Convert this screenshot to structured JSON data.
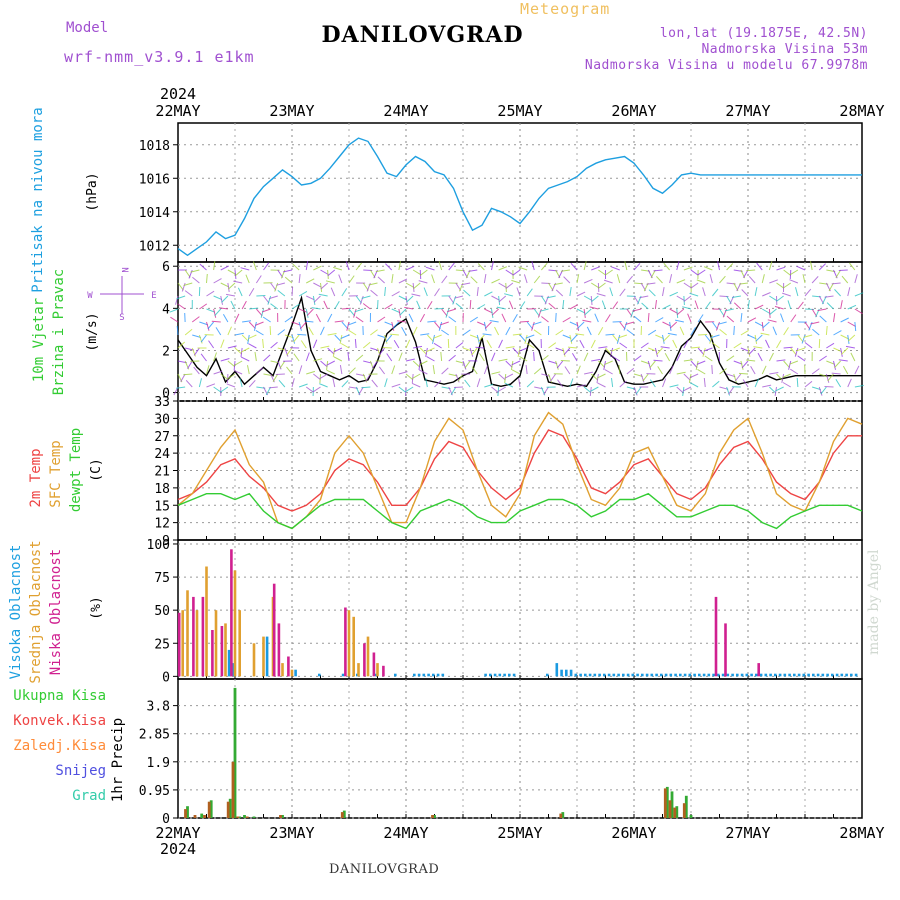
{
  "header": {
    "title": "DANILOVGRAD",
    "subtitle": "Meteogram",
    "model_label": "Model",
    "model_value": "wrf-nmm_v3.9.1  e1km",
    "coords": "lon,lat (19.1875E, 42.5N)",
    "elevation": "Nadmorska Visina 53m",
    "model_elevation": "Nadmorska Visina u modelu 67.9978m",
    "credit": "made by Angel",
    "footer_name": "DANILOVGRAD"
  },
  "time_axis": {
    "year": "2024",
    "days": [
      "22MAY",
      "23MAY",
      "24MAY",
      "25MAY",
      "26MAY",
      "27MAY",
      "28MAY"
    ],
    "hours": 144
  },
  "legend": {
    "wind_compass": "N  W <-|-> E  S",
    "compass_n": "N",
    "compass_w": "W",
    "compass_e": "E",
    "compass_s": "S"
  },
  "chart_data": [
    {
      "type": "line",
      "panel": "pressure",
      "ylabel_main": "Pritisak na nivou mora",
      "ylabel_unit": "(hPa)",
      "ylim": [
        1011,
        1019.3
      ],
      "yticks": [
        1012,
        1014,
        1016,
        1018
      ],
      "grid": true,
      "series": [
        {
          "color": "#1e9fe0",
          "x": [
            0,
            2,
            4,
            6,
            8,
            10,
            12,
            14,
            16,
            18,
            20,
            22,
            24,
            26,
            28,
            30,
            32,
            34,
            36,
            38,
            40,
            42,
            44,
            46,
            48,
            50,
            52,
            54,
            56,
            58,
            60,
            62,
            64,
            66,
            68,
            70,
            72,
            74,
            76,
            78,
            80,
            82,
            84,
            86,
            88,
            90,
            92,
            94,
            96,
            98,
            100,
            102,
            104,
            106,
            108,
            110,
            112,
            114,
            116,
            118,
            120,
            122,
            124,
            126,
            128,
            130,
            132,
            134,
            136,
            138,
            140,
            142,
            144
          ],
          "y": [
            1011.8,
            1011.4,
            1011.8,
            1012.2,
            1012.8,
            1012.4,
            1012.6,
            1013.6,
            1014.8,
            1015.5,
            1016.0,
            1016.5,
            1016.1,
            1015.6,
            1015.7,
            1016.0,
            1016.6,
            1017.3,
            1018.0,
            1018.4,
            1018.2,
            1017.3,
            1016.3,
            1016.1,
            1016.8,
            1017.3,
            1017.0,
            1016.4,
            1016.2,
            1015.4,
            1014.0,
            1012.9,
            1013.2,
            1014.2,
            1014.0,
            1013.7,
            1013.3,
            1014.0,
            1014.8,
            1015.4,
            1015.6,
            1015.8,
            1016.1,
            1016.6,
            1016.9,
            1017.1,
            1017.2,
            1017.3,
            1016.9,
            1016.2,
            1015.4,
            1015.1,
            1015.6,
            1016.2,
            1016.3,
            1016.2,
            1016.2,
            1016.2,
            1016.2,
            1016.2,
            1016.2,
            1016.2,
            1016.2,
            1016.2,
            1016.2,
            1016.2,
            1016.2,
            1016.2,
            1016.2,
            1016.2,
            1016.2,
            1016.2,
            1016.2
          ]
        }
      ]
    },
    {
      "type": "line",
      "panel": "wind",
      "ylabel_main": "10m Vjetar",
      "ylabel_sub": "Brzina i Pravac",
      "ylabel_unit": "(m/s)",
      "ylim": [
        -0.4,
        6.2
      ],
      "yticks": [
        0,
        2,
        4,
        6
      ],
      "grid": true,
      "series": [
        {
          "name": "wind speed",
          "color": "#000000",
          "x": [
            0,
            4,
            6,
            8,
            10,
            12,
            14,
            16,
            18,
            20,
            22,
            24,
            26,
            28,
            30,
            32,
            34,
            36,
            38,
            40,
            42,
            44,
            46,
            48,
            50,
            52,
            54,
            56,
            58,
            60,
            62,
            64,
            66,
            68,
            70,
            72,
            74,
            76,
            78,
            80,
            82,
            84,
            86,
            88,
            90,
            92,
            94,
            96,
            98,
            100,
            102,
            104,
            106,
            108,
            110,
            112,
            114,
            116,
            118,
            120,
            122,
            124,
            126,
            128,
            130,
            132,
            134,
            136,
            138,
            140,
            142,
            144
          ],
          "y": [
            2.5,
            1.2,
            0.8,
            1.6,
            0.5,
            1.0,
            0.4,
            0.8,
            1.2,
            0.8,
            2.0,
            3.2,
            4.5,
            2.0,
            1.0,
            0.8,
            0.6,
            0.8,
            0.5,
            0.6,
            1.5,
            2.8,
            3.2,
            3.5,
            2.4,
            0.6,
            0.5,
            0.4,
            0.5,
            0.8,
            1.0,
            2.6,
            0.4,
            0.3,
            0.4,
            0.8,
            2.5,
            2.0,
            0.5,
            0.4,
            0.3,
            0.4,
            0.3,
            1.0,
            2.0,
            1.6,
            0.5,
            0.4,
            0.4,
            0.5,
            0.6,
            1.2,
            2.2,
            2.6,
            3.4,
            2.8,
            1.4,
            0.6,
            0.4,
            0.5,
            0.6,
            0.8,
            0.6,
            0.7,
            0.8,
            0.8,
            0.8,
            0.8,
            0.8,
            0.8,
            0.8,
            0.8
          ]
        }
      ]
    },
    {
      "type": "line",
      "panel": "temperature",
      "ylabel_t2": "2m Temp",
      "ylabel_sfc": "SFC Temp",
      "ylabel_dew": "dewpt Temp",
      "ylabel_unit": "(C)",
      "ylim": [
        9,
        33
      ],
      "yticks": [
        9,
        12,
        15,
        18,
        21,
        24,
        27,
        30,
        33
      ],
      "grid": true,
      "series": [
        {
          "name": "2m Temp",
          "color": "#ee4444",
          "x": [
            0,
            3,
            6,
            9,
            12,
            15,
            18,
            21,
            24,
            27,
            30,
            33,
            36,
            39,
            42,
            45,
            48,
            51,
            54,
            57,
            60,
            63,
            66,
            69,
            72,
            75,
            78,
            81,
            84,
            87,
            90,
            93,
            96,
            99,
            102,
            105,
            108,
            111,
            114,
            117,
            120,
            123,
            126,
            129,
            132,
            135,
            138,
            141,
            144
          ],
          "y": [
            16,
            17,
            19,
            22,
            23,
            20,
            18,
            15,
            14,
            15,
            17,
            21,
            23,
            22,
            19,
            15,
            15,
            18,
            23,
            26,
            25,
            21,
            18,
            16,
            18,
            24,
            28,
            27,
            23,
            18,
            17,
            19,
            22,
            23,
            20,
            17,
            16,
            18,
            22,
            25,
            26,
            23,
            19,
            17,
            16,
            19,
            24,
            27,
            27
          ]
        },
        {
          "name": "SFC Temp",
          "color": "#e0a030",
          "x": [
            0,
            3,
            6,
            9,
            12,
            15,
            18,
            21,
            24,
            27,
            30,
            33,
            36,
            39,
            42,
            45,
            48,
            51,
            54,
            57,
            60,
            63,
            66,
            69,
            72,
            75,
            78,
            81,
            84,
            87,
            90,
            93,
            96,
            99,
            102,
            105,
            108,
            111,
            114,
            117,
            120,
            123,
            126,
            129,
            132,
            135,
            138,
            141,
            144
          ],
          "y": [
            15,
            17,
            21,
            25,
            28,
            22,
            19,
            12,
            11,
            13,
            16,
            24,
            27,
            24,
            18,
            12,
            12,
            18,
            26,
            30,
            28,
            21,
            15,
            13,
            17,
            27,
            31,
            29,
            22,
            16,
            15,
            18,
            24,
            25,
            20,
            15,
            14,
            17,
            24,
            28,
            30,
            24,
            17,
            15,
            14,
            19,
            26,
            30,
            29
          ]
        },
        {
          "name": "dewpt Temp",
          "color": "#33cc33",
          "x": [
            0,
            3,
            6,
            9,
            12,
            15,
            18,
            21,
            24,
            27,
            30,
            33,
            36,
            39,
            42,
            45,
            48,
            51,
            54,
            57,
            60,
            63,
            66,
            69,
            72,
            75,
            78,
            81,
            84,
            87,
            90,
            93,
            96,
            99,
            102,
            105,
            108,
            111,
            114,
            117,
            120,
            123,
            126,
            129,
            132,
            135,
            138,
            141,
            144
          ],
          "y": [
            15,
            16,
            17,
            17,
            16,
            17,
            14,
            12,
            11,
            13,
            15,
            16,
            16,
            16,
            14,
            12,
            11,
            14,
            15,
            16,
            15,
            13,
            12,
            12,
            14,
            15,
            16,
            16,
            15,
            13,
            14,
            16,
            16,
            17,
            15,
            13,
            13,
            14,
            15,
            15,
            14,
            12,
            11,
            13,
            14,
            15,
            15,
            15,
            14
          ]
        }
      ]
    },
    {
      "type": "bar",
      "panel": "clouds",
      "ylabel_high": "Visoka Oblacnost",
      "ylabel_mid": "Srednja Oblacnost",
      "ylabel_low": "Niska Oblacnost",
      "ylabel_unit": "(%)",
      "ylim": [
        -2,
        103
      ],
      "yticks": [
        0,
        25,
        50,
        75,
        100
      ],
      "grid": true,
      "series": [
        {
          "name": "Visoka Oblacnost",
          "color": "#1a9ae0",
          "hours": [
            11,
            12,
            19,
            25,
            30,
            35,
            38,
            42,
            46,
            50,
            51,
            52,
            53,
            54,
            55,
            56,
            65,
            66,
            67,
            68,
            69,
            70,
            71,
            78,
            80,
            81,
            82,
            83,
            84,
            85,
            86,
            87,
            88,
            89,
            90,
            91,
            92,
            93,
            94,
            95,
            96,
            97,
            98,
            99,
            100,
            101,
            102,
            103,
            104,
            105,
            106,
            107,
            108,
            109,
            110,
            111,
            112,
            113,
            114,
            115,
            116,
            117,
            118,
            119,
            120,
            121,
            122,
            123,
            124,
            125,
            126,
            127,
            128,
            129,
            130,
            131,
            132,
            133,
            134,
            135,
            136,
            137,
            138,
            139,
            140,
            141,
            142,
            143
          ],
          "values": [
            20,
            10,
            30,
            5,
            2,
            2,
            2,
            2,
            2,
            2,
            2,
            2,
            2,
            2,
            2,
            2,
            2,
            2,
            2,
            2,
            2,
            2,
            2,
            2,
            10,
            5,
            5,
            5,
            2,
            2,
            2,
            2,
            2,
            2,
            2,
            2,
            2,
            2,
            2,
            2,
            2,
            2,
            2,
            2,
            2,
            2,
            2,
            2,
            2,
            2,
            2,
            2,
            2,
            2,
            2,
            2,
            2,
            2,
            2,
            2,
            2,
            2,
            2,
            2,
            2,
            2,
            2,
            2,
            2,
            2,
            2,
            2,
            2,
            2,
            2,
            2,
            2,
            2,
            2,
            2,
            2,
            2,
            2,
            2,
            2,
            2,
            2,
            2
          ]
        },
        {
          "name": "Srednja Oblacnost",
          "color": "#e0a030",
          "hours": [
            1,
            2,
            4,
            6,
            8,
            10,
            12,
            13,
            16,
            18,
            20,
            22,
            24,
            36,
            37,
            38,
            40,
            42
          ],
          "values": [
            50,
            65,
            50,
            83,
            50,
            40,
            80,
            50,
            25,
            30,
            60,
            10,
            5,
            50,
            45,
            10,
            30,
            10
          ]
        },
        {
          "name": "Niska Oblacnost",
          "color": "#d02090",
          "hours": [
            0,
            3,
            5,
            7,
            9,
            11,
            20,
            21,
            23,
            35,
            39,
            41,
            43,
            113,
            115,
            122
          ],
          "values": [
            48,
            60,
            60,
            35,
            38,
            96,
            70,
            40,
            15,
            52,
            25,
            18,
            8,
            60,
            40,
            10
          ]
        }
      ]
    },
    {
      "type": "bar",
      "panel": "precipitation",
      "ylabel_main": "1hr Precip",
      "ylabel_unit": "(mm)",
      "ylim": [
        0,
        4.7
      ],
      "yticks": [
        0,
        0.95,
        1.9,
        2.85,
        3.8
      ],
      "grid": true,
      "legend": [
        "Ukupna Kisa",
        "Konvek.Kisa",
        "Zaledj.Kisa",
        "Snijeg",
        "Grad"
      ],
      "legend_colors": [
        "#33cc33",
        "#ee4444",
        "#ff8c3a",
        "#5050e0",
        "#33ccaa"
      ],
      "series": [
        {
          "name": "Ukupna Kisa",
          "color": "#33aa33",
          "hours": [
            2,
            5,
            7,
            11,
            12,
            13,
            14,
            16,
            22,
            35,
            54,
            81,
            103,
            104,
            105,
            107,
            108
          ],
          "values": [
            0.4,
            0.15,
            0.6,
            0.65,
            4.4,
            0.05,
            0.1,
            0.05,
            0.1,
            0.25,
            0.1,
            0.2,
            1.05,
            0.9,
            0.4,
            0.75,
            0.1
          ]
        },
        {
          "name": "Konvek.Kisa",
          "color": "#b06020",
          "hours": [
            2,
            4,
            6,
            7,
            11,
            12,
            13,
            15,
            22,
            35,
            54,
            81,
            103,
            104,
            105,
            107
          ],
          "values": [
            0.3,
            0.1,
            0.1,
            0.55,
            0.55,
            1.9,
            0.05,
            0.05,
            0.1,
            0.2,
            0.1,
            0.15,
            1.0,
            0.6,
            0.35,
            0.5
          ]
        }
      ]
    }
  ],
  "wind_labels_note": ""
}
